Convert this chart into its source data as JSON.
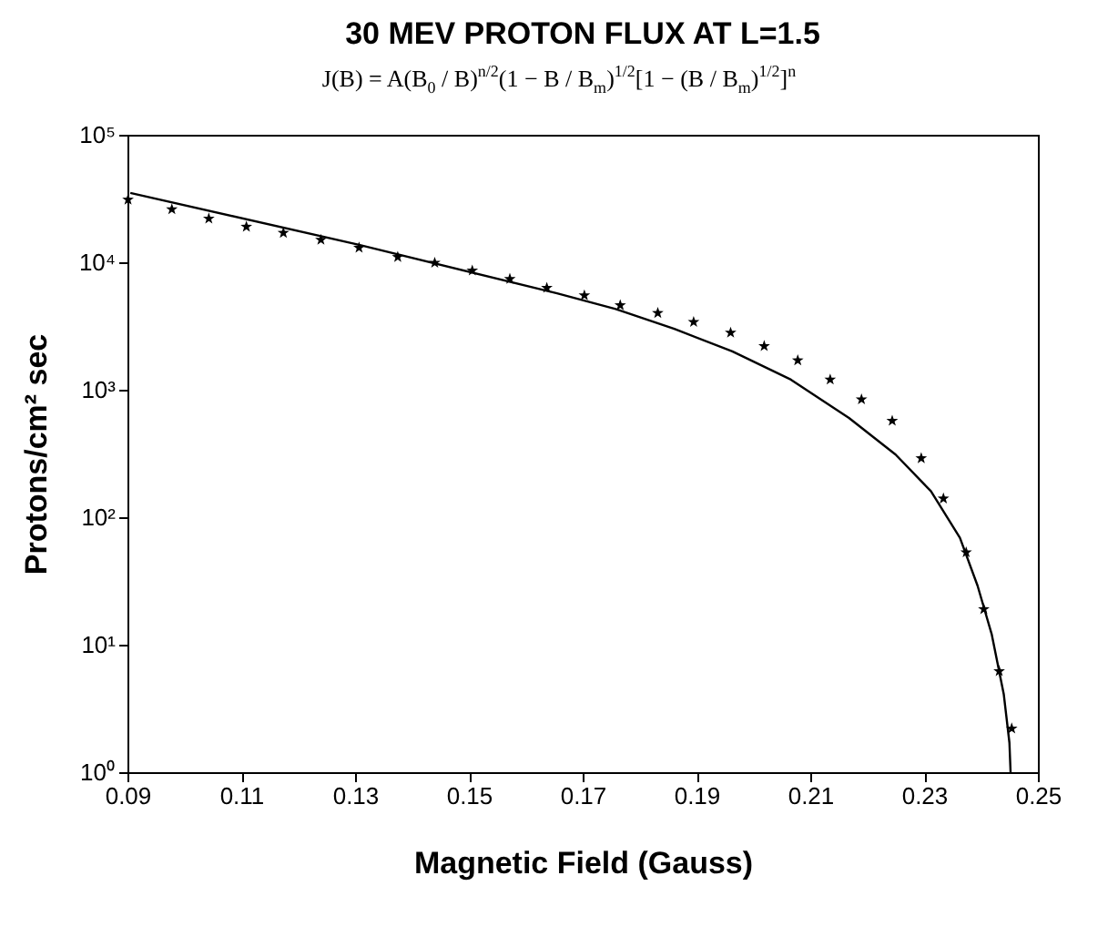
{
  "chart_data": {
    "type": "scatter",
    "title": "30 MEV PROTON FLUX AT L=1.5",
    "subtitle": "J(B) = A(B$_{0}$ / B)$^{n/2}$(1 − B / B$_{m}$)$^{1/2}$[1 − (B / B$_{m}$)$^{1/2}$]$^{n}$",
    "xlabel": "Magnetic Field (Gauss)",
    "ylabel": "Protons/cm² sec",
    "log": "y",
    "xlim": [
      0.09,
      0.25
    ],
    "xticks": [
      {
        "value": 0.09,
        "label": "0.09"
      },
      {
        "value": 0.11,
        "label": "0.11"
      },
      {
        "value": 0.13,
        "label": "0.13"
      },
      {
        "value": 0.15,
        "label": "0.15"
      },
      {
        "value": 0.17,
        "label": "0.17"
      },
      {
        "value": 0.19,
        "label": "0.19"
      },
      {
        "value": 0.21,
        "label": "0.21"
      },
      {
        "value": 0.23,
        "label": "0.23"
      },
      {
        "value": 0.25,
        "label": "0.25"
      }
    ],
    "ylim": [
      1,
      100000
    ],
    "yticks": [
      {
        "value": 1,
        "label": "10⁰"
      },
      {
        "value": 10,
        "label": "10¹"
      },
      {
        "value": 100,
        "label": "10²"
      },
      {
        "value": 1000,
        "label": "10³"
      },
      {
        "value": 10000,
        "label": "10⁴"
      },
      {
        "value": 100000,
        "label": "10⁵"
      }
    ],
    "grid": false,
    "series": [
      {
        "marker": "star",
        "color": "#000000",
        "x": [
          0.0901,
          0.0978,
          0.1043,
          0.1109,
          0.1174,
          0.124,
          0.1307,
          0.1375,
          0.144,
          0.1506,
          0.1572,
          0.1637,
          0.1703,
          0.1766,
          0.1832,
          0.1895,
          0.196,
          0.2019,
          0.2078,
          0.2135,
          0.219,
          0.2244,
          0.2295,
          0.2334,
          0.2374,
          0.2405,
          0.2432,
          0.2454
        ],
        "values": [
          31000,
          26000,
          22000,
          19000,
          17000,
          15000,
          13000,
          11000,
          9900,
          8600,
          7400,
          6300,
          5500,
          4600,
          4000,
          3400,
          2800,
          2200,
          1700,
          1200,
          840,
          570,
          290,
          140,
          53,
          19,
          6.2,
          2.2
        ]
      },
      {
        "type": "line",
        "marker": "none",
        "color": "#000000",
        "x": [
          0.0905,
          0.1307,
          0.1655,
          0.1758,
          0.1861,
          0.1963,
          0.2066,
          0.2168,
          0.225,
          0.2312,
          0.2363,
          0.2394,
          0.2419,
          0.244,
          0.245,
          0.2452
        ],
        "values": [
          35000,
          13700,
          5700,
          4300,
          3000,
          2000,
          1200,
          600,
          310,
          160,
          69,
          29,
          12,
          4.1,
          1.7,
          1
        ]
      }
    ]
  }
}
